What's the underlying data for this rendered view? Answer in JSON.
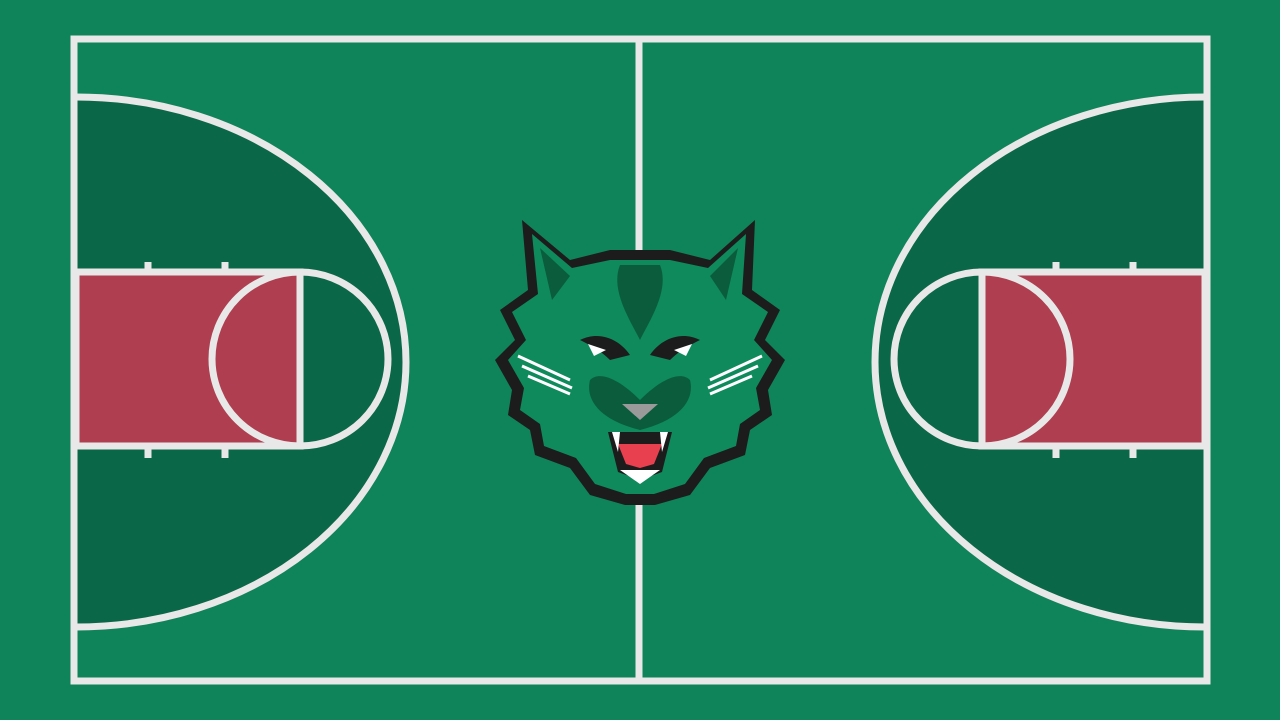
{
  "court": {
    "surface_color": "#0f845a",
    "key_area_color": "#0a6848",
    "paint_color": "#b03e51",
    "line_color": "#e8e8e8"
  },
  "logo": {
    "icon": "wildcat-head-icon",
    "primary_color": "#0f8a5c",
    "dark_color": "#0a5c3d",
    "outline_color": "#1c1c1c",
    "mouth_color": "#e8404e"
  }
}
